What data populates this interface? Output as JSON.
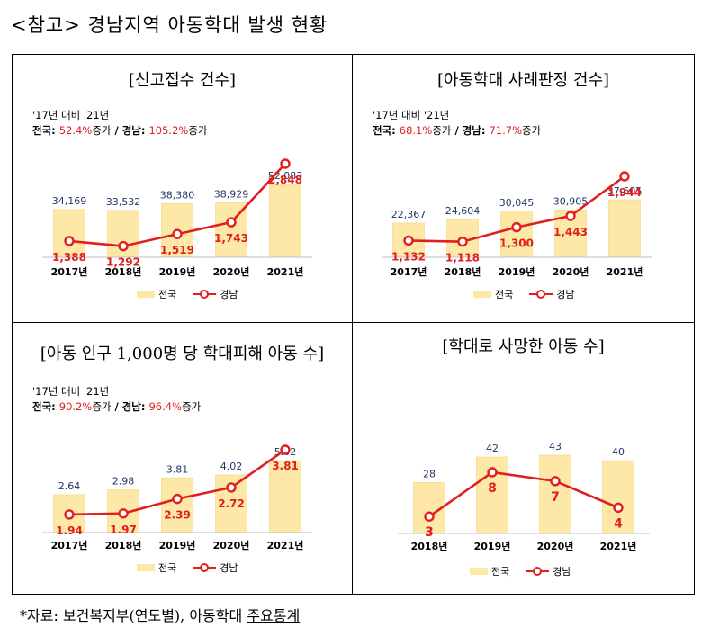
{
  "heading": "<참고> 경남지역 아동학대 발생 현황",
  "source": {
    "prefix": "*자료: 보건복지부(연도별), 아동학대 ",
    "underlined": "주요통계"
  },
  "legend": {
    "bar": "전국",
    "line": "경남"
  },
  "colors": {
    "bar": "#fde8a7",
    "bar_edge": "#f6d57a",
    "line": "#e01f1f",
    "bar_label": "#1f3864",
    "line_label": "#e01f1f"
  },
  "chart_data": [
    {
      "type": "bar",
      "title": "[신고접수 건수]",
      "note": {
        "line1": "'17년 대비 '21년",
        "a_label": "전국: ",
        "a_val": "52.4%",
        "a_suffix": "증가",
        "sep": "  /  경남: ",
        "b_val": "105.2%",
        "b_suffix": "증가"
      },
      "categories": [
        "2017년",
        "2018년",
        "2019년",
        "2020년",
        "2021년"
      ],
      "series": [
        {
          "name": "전국",
          "type": "bar",
          "values": [
            34169,
            33532,
            38380,
            38929,
            52083
          ],
          "labels": [
            "34,169",
            "33,532",
            "38,380",
            "38,929",
            "52,083"
          ]
        },
        {
          "name": "경남",
          "type": "line",
          "values": [
            1388,
            1292,
            1519,
            1743,
            2848
          ],
          "labels": [
            "1,388",
            "1,292",
            "1,519",
            "1,743",
            "2,848"
          ]
        }
      ]
    },
    {
      "type": "bar",
      "title": "[아동학대 사례판정 건수]",
      "note": {
        "line1": "'17년 대비 '21년",
        "a_label": "전국: ",
        "a_val": "68.1%",
        "a_suffix": "증가",
        "sep": "  /  경남: ",
        "b_val": "71.7%",
        "b_suffix": "증가"
      },
      "categories": [
        "2017년",
        "2018년",
        "2019년",
        "2020년",
        "2021년"
      ],
      "series": [
        {
          "name": "전국",
          "type": "bar",
          "values": [
            22367,
            24604,
            30045,
            30905,
            37605
          ],
          "labels": [
            "22,367",
            "24,604",
            "30,045",
            "30,905",
            "37,605"
          ]
        },
        {
          "name": "경남",
          "type": "line",
          "values": [
            1132,
            1118,
            1300,
            1443,
            1944
          ],
          "labels": [
            "1,132",
            "1,118",
            "1,300",
            "1,443",
            "1,944"
          ]
        }
      ]
    },
    {
      "type": "bar",
      "title": "[아동 인구 1,000명 당 학대피해 아동 수]",
      "note": {
        "line1": "'17년 대비 '21년",
        "a_label": "전국: ",
        "a_val": "90.2%",
        "a_suffix": "증가",
        "sep": "  /  경남: ",
        "b_val": "96.4%",
        "b_suffix": "증가"
      },
      "categories": [
        "2017년",
        "2018년",
        "2019년",
        "2020년",
        "2021년"
      ],
      "series": [
        {
          "name": "전국",
          "type": "bar",
          "values": [
            2.64,
            2.98,
            3.81,
            4.02,
            5.02
          ],
          "labels": [
            "2.64",
            "2.98",
            "3.81",
            "4.02",
            "5.02"
          ]
        },
        {
          "name": "경남",
          "type": "line",
          "values": [
            1.94,
            1.97,
            2.39,
            2.72,
            3.81
          ],
          "labels": [
            "1.94",
            "1.97",
            "2.39",
            "2.72",
            "3.81"
          ]
        }
      ]
    },
    {
      "type": "bar",
      "title": "[학대로 사망한 아동 수]",
      "categories": [
        "2018년",
        "2019년",
        "2020년",
        "2021년"
      ],
      "series": [
        {
          "name": "전국",
          "type": "bar",
          "values": [
            28,
            42,
            43,
            40
          ],
          "labels": [
            "28",
            "42",
            "43",
            "40"
          ]
        },
        {
          "name": "경남",
          "type": "line",
          "values": [
            3,
            8,
            7,
            4
          ],
          "labels": [
            "3",
            "8",
            "7",
            "4"
          ]
        }
      ]
    }
  ]
}
